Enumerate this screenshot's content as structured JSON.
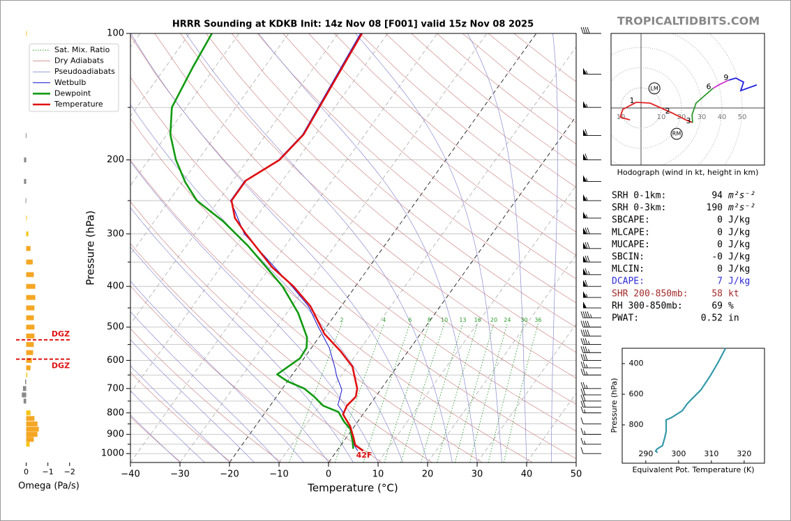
{
  "brand": "TROPICALTIDBITS.COM",
  "chart_data": [
    {
      "type": "skewt",
      "title": "HRRR Sounding at KDKB Init: 14z Nov 08 [F001] valid 15z Nov 08 2025",
      "xlabel": "Temperature (°C)",
      "ylabel": "Pressure (hPa)",
      "xlim": [
        -40,
        50
      ],
      "xticks": [
        {
          "value": -40,
          "label": "−40"
        },
        {
          "value": -30,
          "label": "−30"
        },
        {
          "value": -20,
          "label": "−20"
        },
        {
          "value": -10,
          "label": "−10"
        },
        0,
        10,
        20,
        30,
        40,
        50
      ],
      "ylim": [
        1050,
        100
      ],
      "log_y": true,
      "yticks": [
        100,
        200,
        300,
        400,
        500,
        600,
        700,
        800,
        900,
        1000
      ],
      "minor_yticks": [
        150,
        250,
        350,
        450,
        550,
        650,
        750,
        850,
        950
      ],
      "legend": "upper left",
      "background_lines": [
        {
          "name": "Sat. Mix. Ratio",
          "color": "#2a9a2a"
        },
        {
          "name": "Dry Adiabats",
          "color": "#d08a8a"
        },
        {
          "name": "Pseudoadiabats",
          "color": "#8a8ad0"
        }
      ],
      "mixing_ratio_labels": [
        2,
        4,
        6,
        8,
        10,
        13,
        16,
        20,
        24,
        30,
        36
      ],
      "series": [
        {
          "name": "Wetbulb",
          "color": "#1010d0",
          "pressure": [
            985,
            955,
            920,
            852,
            790,
            766,
            705,
            653,
            628,
            560,
            500,
            446,
            400,
            300,
            250,
            224,
            200,
            174,
            100
          ],
          "values": [
            4.2,
            2.7,
            1.4,
            -1.4,
            -4.8,
            -6.4,
            -7.8,
            -10.9,
            -12.2,
            -16.4,
            -21.6,
            -26.6,
            -32.8,
            -50.0,
            -57.6,
            -57.6,
            -53.8,
            -52.6,
            -55.5
          ]
        },
        {
          "name": "Dewpoint",
          "color": "#109a10",
          "pressure": [
            974,
            941,
            875,
            839,
            796,
            769,
            732,
            700,
            673,
            648,
            593,
            560,
            529,
            463,
            400,
            358,
            320,
            280,
            250,
            226,
            200,
            174,
            150,
            120,
            100
          ],
          "values": [
            3.0,
            2.0,
            -0.4,
            -2.8,
            -5.3,
            -9.3,
            -12.4,
            -15.6,
            -20.0,
            -23.1,
            -20.8,
            -21.0,
            -22.4,
            -27.7,
            -34.7,
            -41.1,
            -47.6,
            -56.1,
            -64.4,
            -69.4,
            -74.5,
            -79.3,
            -82.9,
            -84.5,
            -85.5
          ]
        },
        {
          "name": "Temperature",
          "color": "#e01010",
          "pressure": [
            985,
            955,
            920,
            862,
            807,
            769,
            732,
            700,
            621,
            571,
            519,
            446,
            400,
            360,
            300,
            275,
            250,
            224,
            200,
            174,
            100
          ],
          "values": [
            5.3,
            2.9,
            1.6,
            -0.8,
            -4.0,
            -4.5,
            -4.0,
            -4.9,
            -9.0,
            -13.6,
            -19.4,
            -26.2,
            -32.5,
            -39.6,
            -49.7,
            -54.2,
            -57.4,
            -57.4,
            -53.6,
            -52.4,
            -55.2
          ]
        }
      ],
      "surface_labels": [
        {
          "value": 38,
          "color": "#109a10"
        },
        {
          "value": 42,
          "label": "42F",
          "color": "#e01010"
        }
      ],
      "winds": {
        "pressure": [
          100,
          125,
          150,
          175,
          200,
          225,
          250,
          275,
          300,
          325,
          350,
          375,
          400,
          425,
          450,
          475,
          500,
          525,
          550,
          575,
          600,
          625,
          650,
          700,
          725,
          750,
          775,
          800,
          850,
          900,
          950,
          1000
        ],
        "speed": [
          40,
          55,
          55,
          60,
          60,
          55,
          55,
          55,
          70,
          70,
          70,
          65,
          60,
          55,
          50,
          45,
          40,
          40,
          35,
          35,
          30,
          25,
          25,
          25,
          20,
          20,
          20,
          15,
          10,
          15,
          15,
          10
        ]
      }
    },
    {
      "type": "omega",
      "xlabel": "Omega (Pa/s)",
      "xlim": [
        0.5,
        -2.2
      ],
      "xticks": [
        0,
        {
          "value": -1,
          "label": "−1"
        },
        {
          "value": -2,
          "label": "−2"
        }
      ],
      "pressure": [
        100,
        175,
        200,
        225,
        250,
        275,
        300,
        325,
        350,
        375,
        400,
        425,
        450,
        475,
        500,
        525,
        550,
        575,
        600,
        625,
        650,
        675,
        700,
        725,
        750,
        800,
        825,
        850,
        875,
        900,
        925,
        950
      ],
      "values": [
        -0.01,
        0.02,
        0.1,
        0.1,
        0.03,
        -0.03,
        -0.1,
        -0.2,
        -0.3,
        -0.35,
        -0.42,
        -0.42,
        -0.38,
        -0.35,
        -0.38,
        -0.38,
        -0.35,
        -0.32,
        -0.26,
        -0.2,
        -0.05,
        0.05,
        0.15,
        0.2,
        0.12,
        -0.2,
        -0.38,
        -0.52,
        -0.58,
        -0.52,
        -0.35,
        -0.16
      ],
      "colors": [
        "#f5c518",
        "#888888",
        "#888888",
        "#888888",
        "#888888",
        "#f5c518",
        "#f5c518",
        "#f5a623",
        "#f5a623",
        "#f5a623",
        "#f5a623",
        "#f5a623",
        "#f5a623",
        "#f5a623",
        "#f5a623",
        "#f5a623",
        "#f5a623",
        "#f5a623",
        "#f5a623",
        "#f5a623",
        "#f5c518",
        "#888888",
        "#888888",
        "#888888",
        "#888888",
        "#f5c518",
        "#f5a623",
        "#f5a623",
        "#f5a623",
        "#f5a623",
        "#f5a623",
        "#f5c518"
      ],
      "dgz": {
        "label": "DGZ",
        "pressure": [
          536,
          596
        ],
        "color": "#e01010"
      }
    },
    {
      "type": "hodograph",
      "caption": "Hodograph (wind in kt, height in km)",
      "rings": [
        {
          "value": -10,
          "label": "10"
        },
        10,
        20,
        30,
        40,
        50
      ],
      "segments": [
        {
          "color": "#e02020",
          "u": [
            -5.5,
            -10.3,
            -9,
            -2.4,
            4.5,
            15.2,
            22.8,
            25.5
          ],
          "v": [
            -5.9,
            -4.5,
            -0.7,
            2.8,
            2.4,
            -2.4,
            -6.2,
            -7.2
          ]
        },
        {
          "color": "#2a9a2a",
          "u": [
            25.5,
            25.2,
            27.2,
            35.5
          ],
          "v": [
            -7.2,
            -3.4,
            2.4,
            9.7
          ]
        },
        {
          "color": "#cc33cc",
          "u": [
            35.5,
            39,
            43.4
          ],
          "v": [
            9.7,
            11.7,
            13.8
          ]
        },
        {
          "color": "#2020e0",
          "u": [
            43.4,
            46.9,
            50.7,
            49.3,
            57.2
          ],
          "v": [
            13.8,
            14.8,
            12.8,
            8.6,
            11.4
          ]
        }
      ],
      "height_labels": [
        {
          "value": 1,
          "u": -2.4,
          "v": 2.8
        },
        {
          "value": 2,
          "u": 15.2,
          "v": -2.4
        },
        {
          "value": 3,
          "u": 25.5,
          "v": -7.2
        },
        {
          "value": 6,
          "u": 35.5,
          "v": 9.7
        },
        {
          "value": 9,
          "u": 44.1,
          "v": 14.1
        }
      ],
      "storm_motion": [
        {
          "label": "LM",
          "u": 6.6,
          "v": 9.7
        },
        {
          "label": "RM",
          "u": 17.6,
          "v": -12.8
        }
      ]
    },
    {
      "type": "line",
      "xlabel": "Equivalent Pot. Temperature (K)",
      "ylabel": "Pressure (hPa)",
      "xlim": [
        282.8,
        326.2
      ],
      "xticks": [
        290,
        300,
        310,
        320
      ],
      "ylim": [
        1050,
        300
      ],
      "yticks": [
        400,
        600,
        800
      ],
      "color": "#3399aa",
      "values": [
        293.6,
        293.0,
        293.4,
        295.1,
        295.7,
        296.2,
        296.2,
        297.7,
        301.1,
        302.6,
        303.6,
        306.8,
        309.6,
        312.1,
        314.3
      ],
      "pressure": [
        980,
        971,
        958,
        935,
        890,
        844,
        767,
        754,
        708,
        663,
        640,
        572,
        482,
        391,
        300
      ]
    }
  ],
  "stats": [
    {
      "label": "SRH 0-1km:",
      "value": 94,
      "unit": "m²s⁻²",
      "color": "#000000"
    },
    {
      "label": "SRH 0-3km:",
      "value": 190,
      "unit": "m²s⁻²",
      "color": "#000000"
    },
    {
      "label": "SBCAPE:",
      "value": 0,
      "unit": "J/kg",
      "color": "#000000"
    },
    {
      "label": "MLCAPE:",
      "value": 0,
      "unit": "J/kg",
      "color": "#000000"
    },
    {
      "label": "MUCAPE:",
      "value": 0,
      "unit": "J/kg",
      "color": "#000000"
    },
    {
      "label": "SBCIN:",
      "value": "-0",
      "unit": "J/kg",
      "color": "#000000"
    },
    {
      "label": "MLCIN:",
      "value": 0,
      "unit": "J/kg",
      "color": "#000000"
    },
    {
      "label": "DCAPE:",
      "value": 7,
      "unit": "J/kg",
      "color": "#2b2bd6"
    },
    {
      "label": "SHR 200-850mb:",
      "value": 58,
      "unit": "kt",
      "color": "#a52a2a"
    },
    {
      "label": "RH 300-850mb:",
      "value": 69,
      "unit": "%",
      "color": "#000000"
    },
    {
      "label": "PWAT:",
      "value": 0.52,
      "unit": "in",
      "color": "#000000"
    }
  ]
}
